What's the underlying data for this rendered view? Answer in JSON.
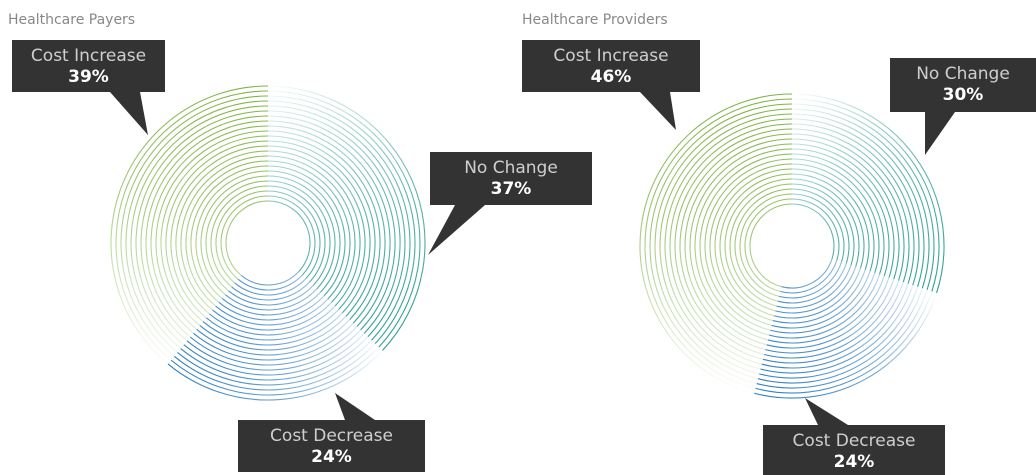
{
  "chart_data": [
    {
      "type": "pie",
      "title": "Healthcare Payers",
      "categories": [
        "No Change",
        "Cost Decrease",
        "Cost Increase"
      ],
      "values": [
        37,
        24,
        39
      ],
      "value_labels": [
        "37%",
        "24%",
        "39%"
      ],
      "colors": [
        "#2a9d8f",
        "#2b7bbf",
        "#7cb342"
      ]
    },
    {
      "type": "pie",
      "title": "Healthcare Providers",
      "categories": [
        "No Change",
        "Cost Decrease",
        "Cost Increase"
      ],
      "values": [
        30,
        24,
        46
      ],
      "value_labels": [
        "30%",
        "24%",
        "46%"
      ],
      "colors": [
        "#2a9d8f",
        "#2b7bbf",
        "#7cb342"
      ]
    }
  ]
}
